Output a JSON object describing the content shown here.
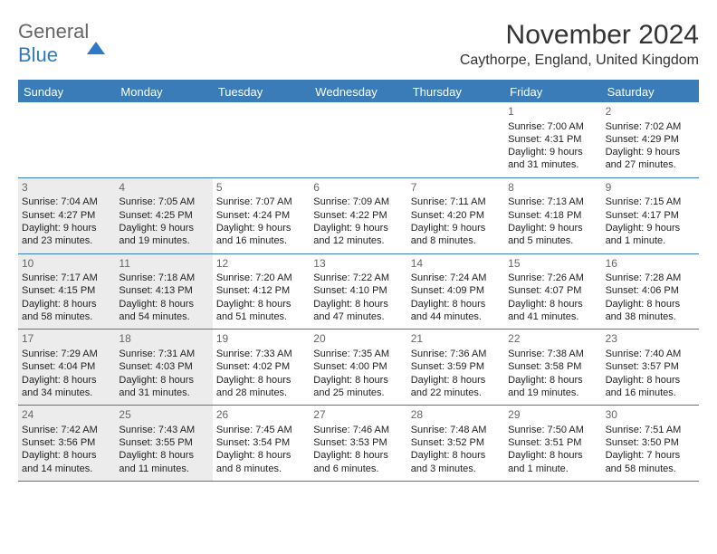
{
  "logo": {
    "line1": "General",
    "line2": "Blue"
  },
  "title": "November 2024",
  "location": "Caythorpe, England, United Kingdom",
  "colors": {
    "accent": "#3a7cb8",
    "shade": "#ececec",
    "text": "#222222",
    "muted": "#666666",
    "bg": "#ffffff"
  },
  "daysOfWeek": [
    "Sunday",
    "Monday",
    "Tuesday",
    "Wednesday",
    "Thursday",
    "Friday",
    "Saturday"
  ],
  "weeks": [
    [
      null,
      null,
      null,
      null,
      null,
      {
        "n": "1",
        "sunrise": "Sunrise: 7:00 AM",
        "sunset": "Sunset: 4:31 PM",
        "day1": "Daylight: 9 hours",
        "day2": "and 31 minutes."
      },
      {
        "n": "2",
        "sunrise": "Sunrise: 7:02 AM",
        "sunset": "Sunset: 4:29 PM",
        "day1": "Daylight: 9 hours",
        "day2": "and 27 minutes."
      }
    ],
    [
      {
        "n": "3",
        "sunrise": "Sunrise: 7:04 AM",
        "sunset": "Sunset: 4:27 PM",
        "day1": "Daylight: 9 hours",
        "day2": "and 23 minutes."
      },
      {
        "n": "4",
        "sunrise": "Sunrise: 7:05 AM",
        "sunset": "Sunset: 4:25 PM",
        "day1": "Daylight: 9 hours",
        "day2": "and 19 minutes."
      },
      {
        "n": "5",
        "sunrise": "Sunrise: 7:07 AM",
        "sunset": "Sunset: 4:24 PM",
        "day1": "Daylight: 9 hours",
        "day2": "and 16 minutes."
      },
      {
        "n": "6",
        "sunrise": "Sunrise: 7:09 AM",
        "sunset": "Sunset: 4:22 PM",
        "day1": "Daylight: 9 hours",
        "day2": "and 12 minutes."
      },
      {
        "n": "7",
        "sunrise": "Sunrise: 7:11 AM",
        "sunset": "Sunset: 4:20 PM",
        "day1": "Daylight: 9 hours",
        "day2": "and 8 minutes."
      },
      {
        "n": "8",
        "sunrise": "Sunrise: 7:13 AM",
        "sunset": "Sunset: 4:18 PM",
        "day1": "Daylight: 9 hours",
        "day2": "and 5 minutes."
      },
      {
        "n": "9",
        "sunrise": "Sunrise: 7:15 AM",
        "sunset": "Sunset: 4:17 PM",
        "day1": "Daylight: 9 hours",
        "day2": "and 1 minute."
      }
    ],
    [
      {
        "n": "10",
        "sunrise": "Sunrise: 7:17 AM",
        "sunset": "Sunset: 4:15 PM",
        "day1": "Daylight: 8 hours",
        "day2": "and 58 minutes."
      },
      {
        "n": "11",
        "sunrise": "Sunrise: 7:18 AM",
        "sunset": "Sunset: 4:13 PM",
        "day1": "Daylight: 8 hours",
        "day2": "and 54 minutes."
      },
      {
        "n": "12",
        "sunrise": "Sunrise: 7:20 AM",
        "sunset": "Sunset: 4:12 PM",
        "day1": "Daylight: 8 hours",
        "day2": "and 51 minutes."
      },
      {
        "n": "13",
        "sunrise": "Sunrise: 7:22 AM",
        "sunset": "Sunset: 4:10 PM",
        "day1": "Daylight: 8 hours",
        "day2": "and 47 minutes."
      },
      {
        "n": "14",
        "sunrise": "Sunrise: 7:24 AM",
        "sunset": "Sunset: 4:09 PM",
        "day1": "Daylight: 8 hours",
        "day2": "and 44 minutes."
      },
      {
        "n": "15",
        "sunrise": "Sunrise: 7:26 AM",
        "sunset": "Sunset: 4:07 PM",
        "day1": "Daylight: 8 hours",
        "day2": "and 41 minutes."
      },
      {
        "n": "16",
        "sunrise": "Sunrise: 7:28 AM",
        "sunset": "Sunset: 4:06 PM",
        "day1": "Daylight: 8 hours",
        "day2": "and 38 minutes."
      }
    ],
    [
      {
        "n": "17",
        "sunrise": "Sunrise: 7:29 AM",
        "sunset": "Sunset: 4:04 PM",
        "day1": "Daylight: 8 hours",
        "day2": "and 34 minutes."
      },
      {
        "n": "18",
        "sunrise": "Sunrise: 7:31 AM",
        "sunset": "Sunset: 4:03 PM",
        "day1": "Daylight: 8 hours",
        "day2": "and 31 minutes."
      },
      {
        "n": "19",
        "sunrise": "Sunrise: 7:33 AM",
        "sunset": "Sunset: 4:02 PM",
        "day1": "Daylight: 8 hours",
        "day2": "and 28 minutes."
      },
      {
        "n": "20",
        "sunrise": "Sunrise: 7:35 AM",
        "sunset": "Sunset: 4:00 PM",
        "day1": "Daylight: 8 hours",
        "day2": "and 25 minutes."
      },
      {
        "n": "21",
        "sunrise": "Sunrise: 7:36 AM",
        "sunset": "Sunset: 3:59 PM",
        "day1": "Daylight: 8 hours",
        "day2": "and 22 minutes."
      },
      {
        "n": "22",
        "sunrise": "Sunrise: 7:38 AM",
        "sunset": "Sunset: 3:58 PM",
        "day1": "Daylight: 8 hours",
        "day2": "and 19 minutes."
      },
      {
        "n": "23",
        "sunrise": "Sunrise: 7:40 AM",
        "sunset": "Sunset: 3:57 PM",
        "day1": "Daylight: 8 hours",
        "day2": "and 16 minutes."
      }
    ],
    [
      {
        "n": "24",
        "sunrise": "Sunrise: 7:42 AM",
        "sunset": "Sunset: 3:56 PM",
        "day1": "Daylight: 8 hours",
        "day2": "and 14 minutes."
      },
      {
        "n": "25",
        "sunrise": "Sunrise: 7:43 AM",
        "sunset": "Sunset: 3:55 PM",
        "day1": "Daylight: 8 hours",
        "day2": "and 11 minutes."
      },
      {
        "n": "26",
        "sunrise": "Sunrise: 7:45 AM",
        "sunset": "Sunset: 3:54 PM",
        "day1": "Daylight: 8 hours",
        "day2": "and 8 minutes."
      },
      {
        "n": "27",
        "sunrise": "Sunrise: 7:46 AM",
        "sunset": "Sunset: 3:53 PM",
        "day1": "Daylight: 8 hours",
        "day2": "and 6 minutes."
      },
      {
        "n": "28",
        "sunrise": "Sunrise: 7:48 AM",
        "sunset": "Sunset: 3:52 PM",
        "day1": "Daylight: 8 hours",
        "day2": "and 3 minutes."
      },
      {
        "n": "29",
        "sunrise": "Sunrise: 7:50 AM",
        "sunset": "Sunset: 3:51 PM",
        "day1": "Daylight: 8 hours",
        "day2": "and 1 minute."
      },
      {
        "n": "30",
        "sunrise": "Sunrise: 7:51 AM",
        "sunset": "Sunset: 3:50 PM",
        "day1": "Daylight: 7 hours",
        "day2": "and 58 minutes."
      }
    ]
  ]
}
